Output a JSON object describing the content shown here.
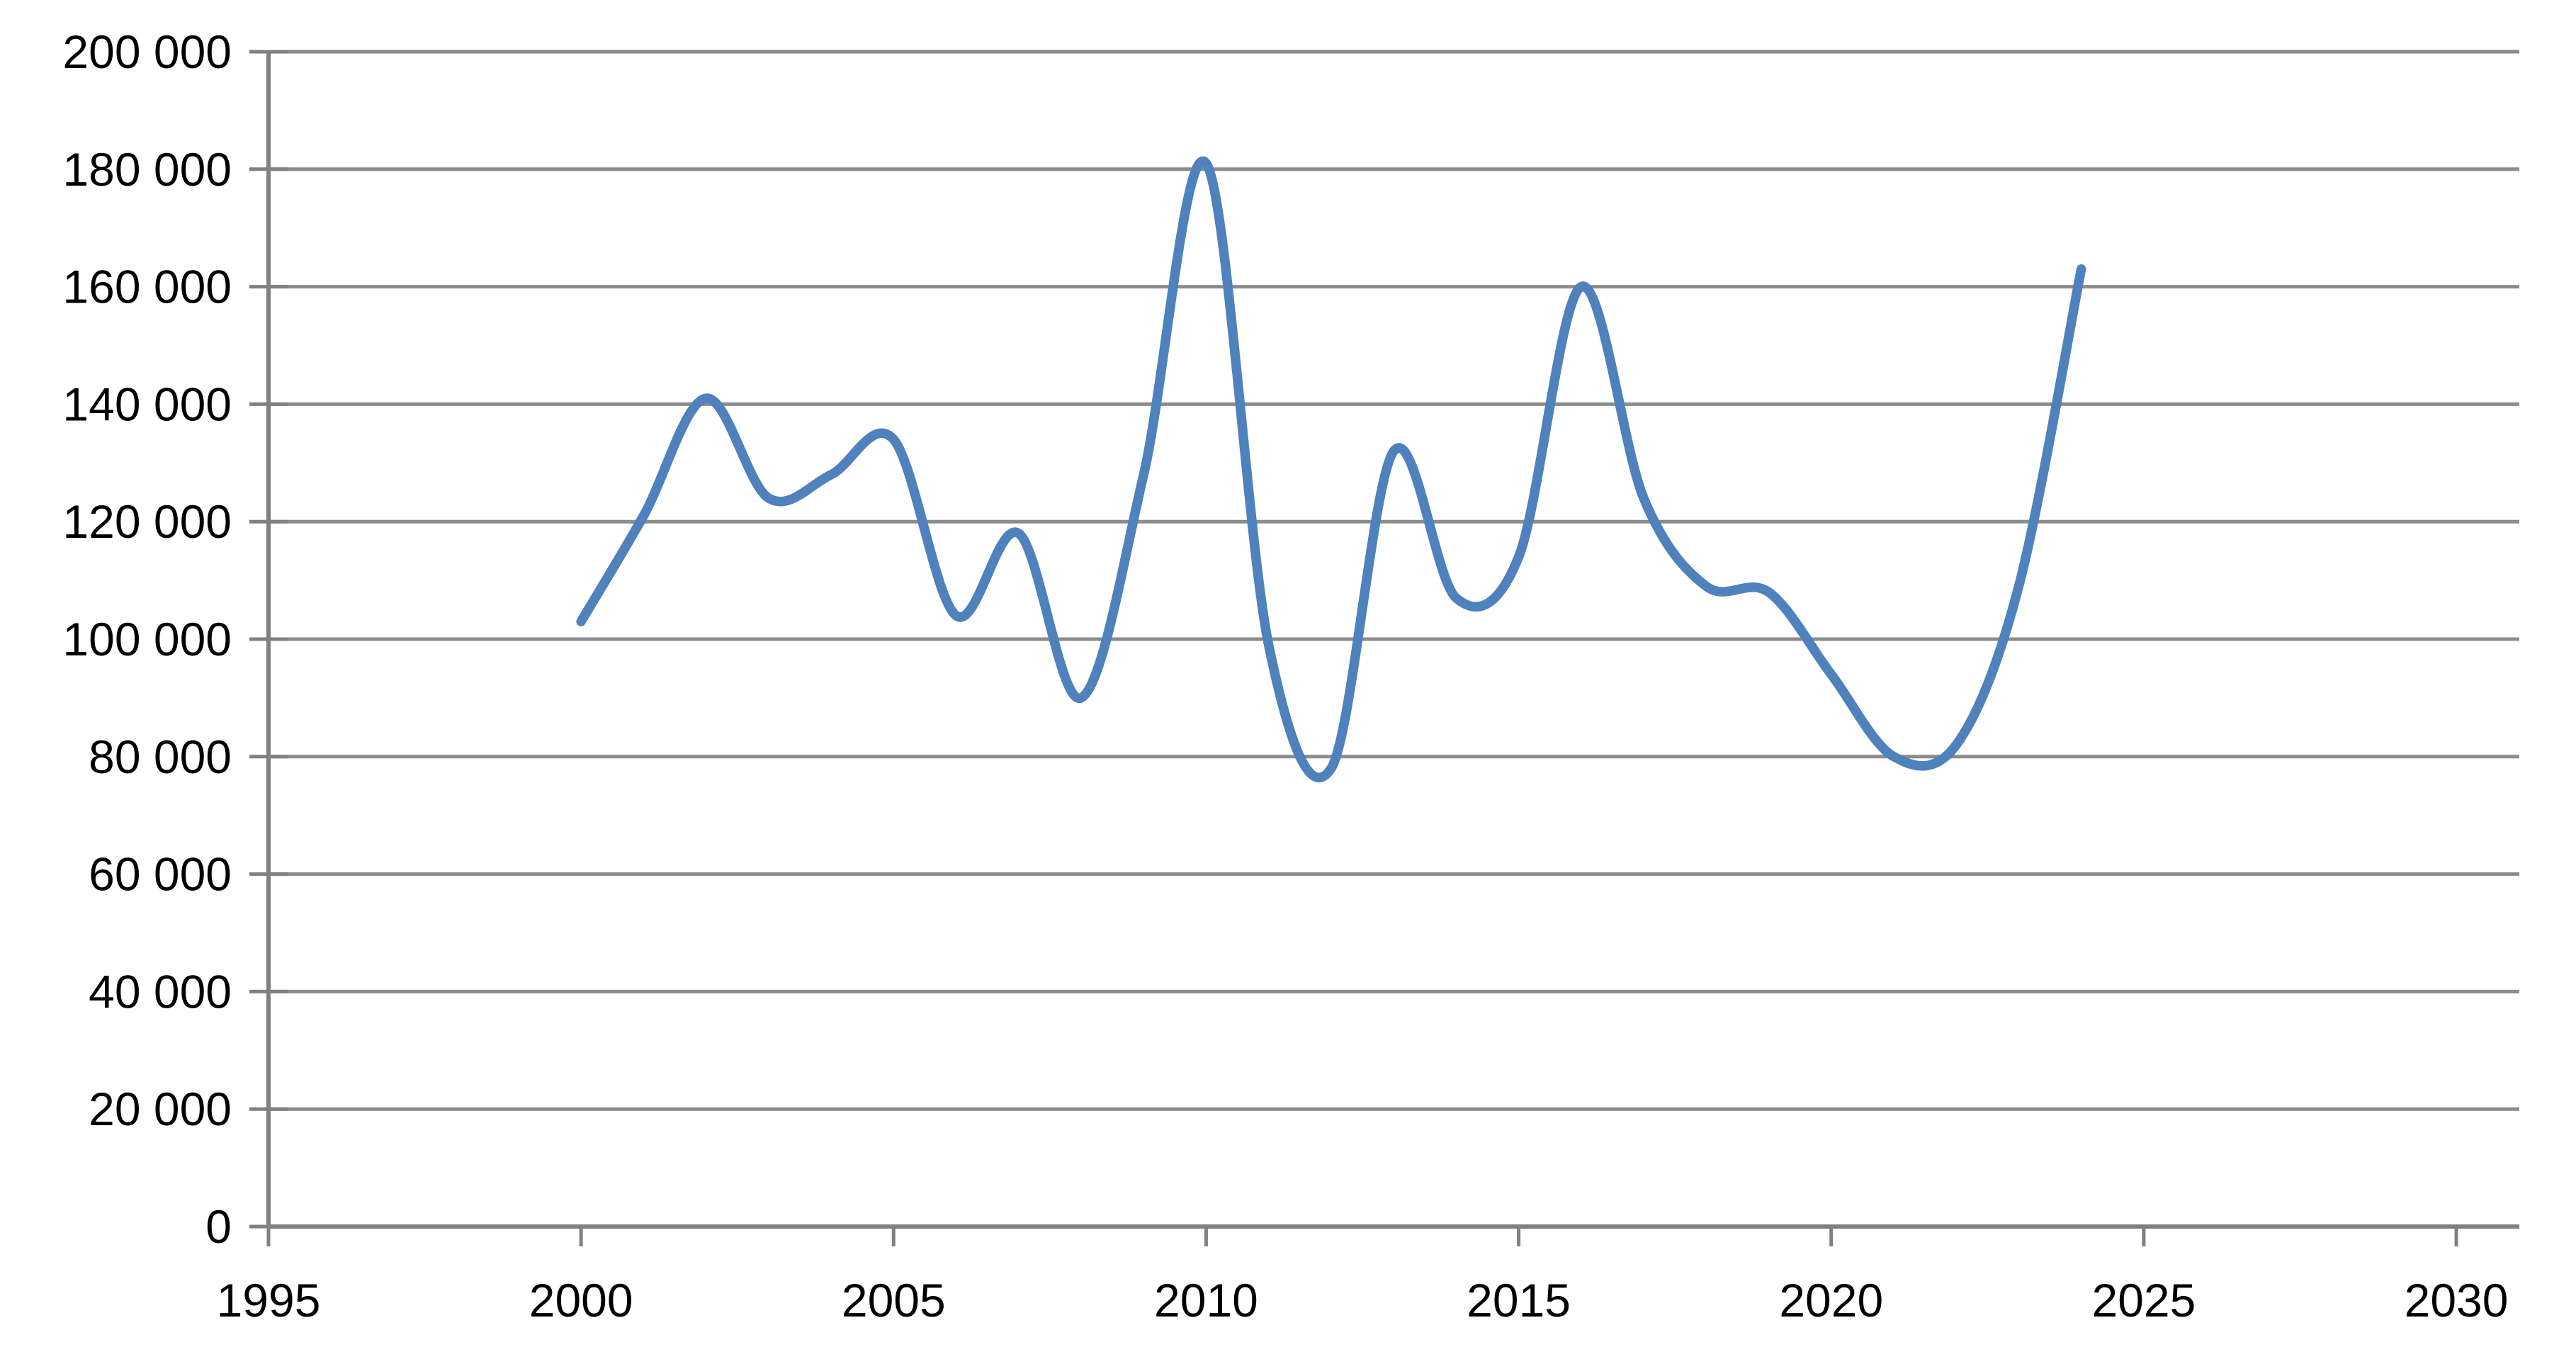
{
  "chart_data": {
    "type": "line",
    "smooth": true,
    "title": "",
    "xlabel": "",
    "ylabel": "",
    "x": [
      2000,
      2001,
      2002,
      2003,
      2004,
      2005,
      2006,
      2007,
      2008,
      2009,
      2010,
      2011,
      2012,
      2013,
      2014,
      2015,
      2016,
      2017,
      2018,
      2019,
      2020,
      2021,
      2022,
      2023,
      2024
    ],
    "values": [
      103000,
      121000,
      141000,
      124000,
      128000,
      134000,
      104000,
      118000,
      90000,
      128000,
      181000,
      99000,
      78000,
      132000,
      107000,
      114000,
      160000,
      124000,
      109000,
      108000,
      94000,
      80000,
      82000,
      109000,
      163000
    ],
    "series": [
      {
        "name": "",
        "values": [
          103000,
          121000,
          141000,
          124000,
          128000,
          134000,
          104000,
          118000,
          90000,
          128000,
          181000,
          99000,
          78000,
          132000,
          107000,
          114000,
          160000,
          124000,
          109000,
          108000,
          94000,
          80000,
          82000,
          109000,
          163000
        ]
      }
    ],
    "xlim": [
      1995,
      2031
    ],
    "ylim": [
      0,
      200000
    ],
    "x_ticks": [
      1995,
      2000,
      2005,
      2010,
      2015,
      2020,
      2025,
      2030
    ],
    "x_tick_labels": [
      "1995",
      "2000",
      "2005",
      "2010",
      "2015",
      "2020",
      "2025",
      "2030"
    ],
    "y_ticks": [
      0,
      20000,
      40000,
      60000,
      80000,
      100000,
      120000,
      140000,
      160000,
      180000,
      200000
    ],
    "y_tick_labels": [
      "0",
      "20 000",
      "40 000",
      "60 000",
      "80 000",
      "100 000",
      "120 000",
      "140 000",
      "160 000",
      "180 000",
      "200 000"
    ],
    "grid": "horizontal",
    "legend_position": "none",
    "line_color": "#4F81BD",
    "gridline_color": "#8C8C8C",
    "axis_color": "#808080",
    "background_color": "#FFFFFF",
    "text_color": "#000000"
  }
}
